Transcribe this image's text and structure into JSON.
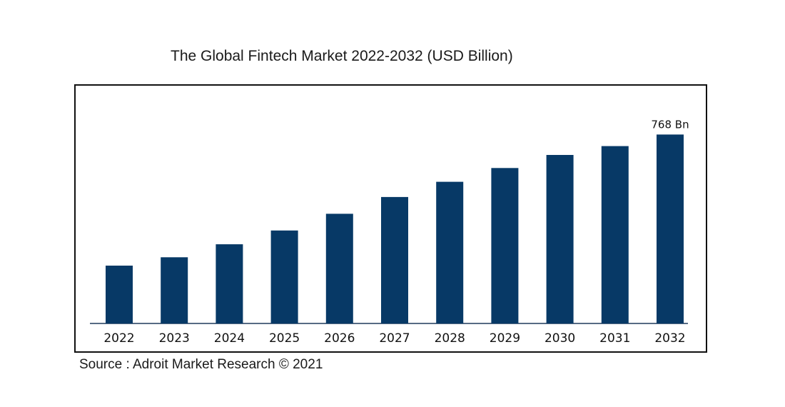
{
  "title": "The Global Fintech Market 2022-2032 (USD Billion)",
  "source": "Source : Adroit Market Research © 2021",
  "colors": {
    "bar": "#073966",
    "axis": "#1f3a5c"
  },
  "chart_data": {
    "type": "bar",
    "title": "The Global Fintech Market 2022-2032 (USD Billion)",
    "categories": [
      "2022",
      "2023",
      "2024",
      "2025",
      "2026",
      "2027",
      "2028",
      "2029",
      "2030",
      "2031",
      "2032"
    ],
    "values": [
      235,
      269,
      322,
      378,
      446,
      514,
      576,
      632,
      685,
      721,
      768
    ],
    "data_labels": [
      {
        "index": 10,
        "text": "768 Bn"
      }
    ],
    "xlabel": "",
    "ylabel": "",
    "ylim": [
      0,
      820
    ],
    "grid": false,
    "legend": "none"
  }
}
